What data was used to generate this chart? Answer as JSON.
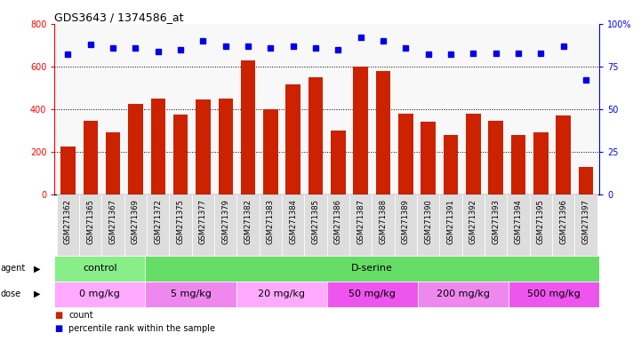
{
  "title": "GDS3643 / 1374586_at",
  "samples": [
    "GSM271362",
    "GSM271365",
    "GSM271367",
    "GSM271369",
    "GSM271372",
    "GSM271375",
    "GSM271377",
    "GSM271379",
    "GSM271382",
    "GSM271383",
    "GSM271384",
    "GSM271385",
    "GSM271386",
    "GSM271387",
    "GSM271388",
    "GSM271389",
    "GSM271390",
    "GSM271391",
    "GSM271392",
    "GSM271393",
    "GSM271394",
    "GSM271395",
    "GSM271396",
    "GSM271397"
  ],
  "counts": [
    225,
    345,
    290,
    425,
    450,
    375,
    445,
    450,
    630,
    400,
    515,
    550,
    300,
    600,
    580,
    380,
    340,
    280,
    380,
    345,
    280,
    290,
    370,
    130
  ],
  "percentiles": [
    82,
    88,
    86,
    86,
    84,
    85,
    90,
    87,
    87,
    86,
    87,
    86,
    85,
    92,
    90,
    86,
    82,
    82,
    83,
    83,
    83,
    83,
    87,
    67
  ],
  "bar_color": "#cc2200",
  "dot_color": "#0000ee",
  "ylim_left": [
    0,
    800
  ],
  "ylim_right": [
    0,
    100
  ],
  "yticks_left": [
    0,
    200,
    400,
    600,
    800
  ],
  "yticks_right": [
    0,
    25,
    50,
    75,
    100
  ],
  "agent_groups": [
    {
      "label": "control",
      "start": 0,
      "end": 4,
      "color": "#88ee88"
    },
    {
      "label": "D-serine",
      "start": 4,
      "end": 24,
      "color": "#66dd66"
    }
  ],
  "dose_groups": [
    {
      "label": "0 mg/kg",
      "start": 0,
      "end": 4,
      "color": "#ffaaff"
    },
    {
      "label": "5 mg/kg",
      "start": 4,
      "end": 8,
      "color": "#ee88ee"
    },
    {
      "label": "20 mg/kg",
      "start": 8,
      "end": 12,
      "color": "#ffaaff"
    },
    {
      "label": "50 mg/kg",
      "start": 12,
      "end": 16,
      "color": "#ee55ee"
    },
    {
      "label": "200 mg/kg",
      "start": 16,
      "end": 20,
      "color": "#ee88ee"
    },
    {
      "label": "500 mg/kg",
      "start": 20,
      "end": 24,
      "color": "#ee55ee"
    }
  ],
  "xtick_bg": "#dddddd",
  "chart_bg": "#f8f8f8",
  "fig_width": 7.21,
  "fig_height": 3.84,
  "dpi": 100
}
